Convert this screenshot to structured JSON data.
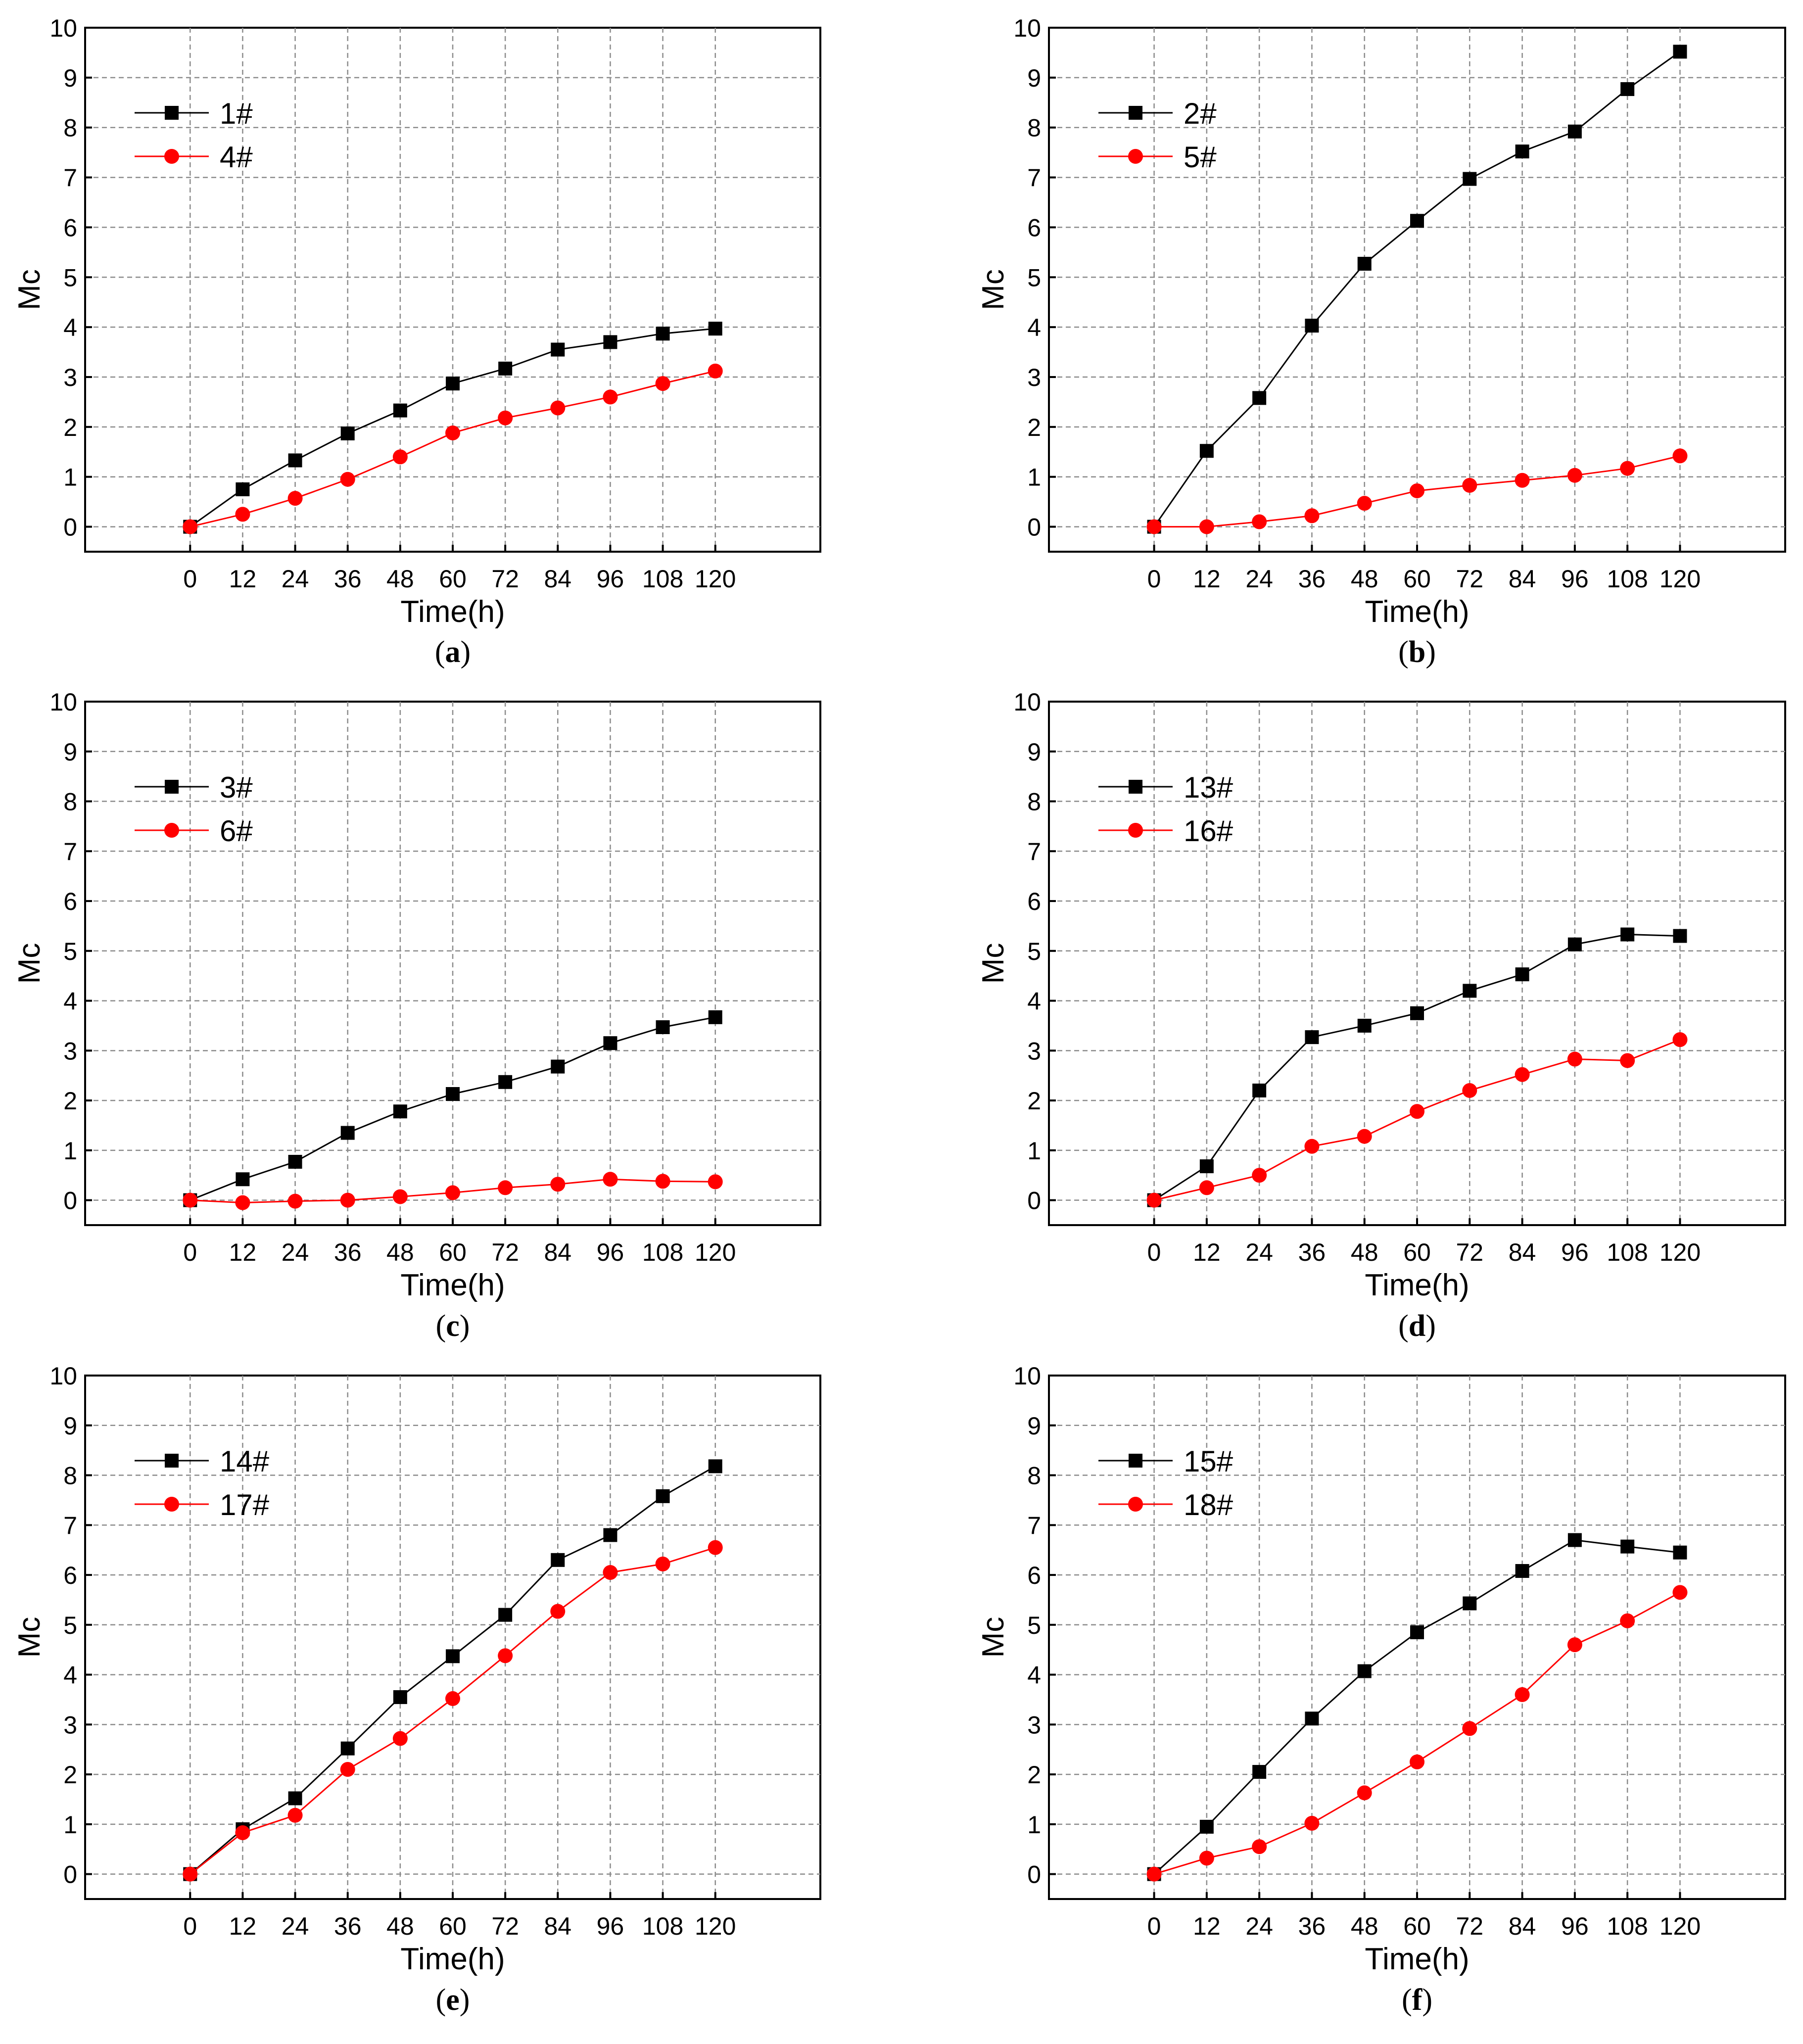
{
  "chart_data": [
    {
      "type": "line",
      "panel_label": "a",
      "xlabel": "Time(h)",
      "ylabel": "Mc",
      "x": [
        0,
        12,
        24,
        36,
        48,
        60,
        72,
        84,
        96,
        108,
        120
      ],
      "xticks": [
        "0",
        "12",
        "24",
        "36",
        "48",
        "60",
        "72",
        "84",
        "96",
        "108",
        "120"
      ],
      "ylim": [
        -0.5,
        10
      ],
      "yticks": [
        "0",
        "1",
        "2",
        "3",
        "4",
        "5",
        "6",
        "7",
        "8",
        "9",
        "10"
      ],
      "grid": true,
      "legend_position": "top-left",
      "series": [
        {
          "name": "1#",
          "color": "#000000",
          "marker": "square",
          "values": [
            0,
            0.75,
            1.33,
            1.87,
            2.33,
            2.87,
            3.17,
            3.55,
            3.7,
            3.87,
            3.97
          ]
        },
        {
          "name": "4#",
          "color": "#ff0000",
          "marker": "circle",
          "values": [
            0,
            0.25,
            0.57,
            0.95,
            1.4,
            1.88,
            2.18,
            2.38,
            2.6,
            2.87,
            3.12
          ]
        }
      ]
    },
    {
      "type": "line",
      "panel_label": "b",
      "xlabel": "Time(h)",
      "ylabel": "Mc",
      "x": [
        0,
        12,
        24,
        36,
        48,
        60,
        72,
        84,
        96,
        108,
        120
      ],
      "xticks": [
        "0",
        "12",
        "24",
        "36",
        "48",
        "60",
        "72",
        "84",
        "96",
        "108",
        "120"
      ],
      "ylim": [
        -0.5,
        10
      ],
      "yticks": [
        "0",
        "1",
        "2",
        "3",
        "4",
        "5",
        "6",
        "7",
        "8",
        "9",
        "10"
      ],
      "grid": true,
      "legend_position": "top-left",
      "series": [
        {
          "name": "2#",
          "color": "#000000",
          "marker": "square",
          "values": [
            0,
            1.52,
            2.58,
            4.03,
            5.27,
            6.13,
            6.97,
            7.52,
            7.92,
            8.77,
            9.52
          ]
        },
        {
          "name": "5#",
          "color": "#ff0000",
          "marker": "circle",
          "values": [
            0,
            0,
            0.1,
            0.22,
            0.47,
            0.72,
            0.83,
            0.93,
            1.03,
            1.17,
            1.42
          ]
        }
      ]
    },
    {
      "type": "line",
      "panel_label": "c",
      "xlabel": "Time(h)",
      "ylabel": "Mc",
      "x": [
        0,
        12,
        24,
        36,
        48,
        60,
        72,
        84,
        96,
        108,
        120
      ],
      "xticks": [
        "0",
        "12",
        "24",
        "36",
        "48",
        "60",
        "72",
        "84",
        "96",
        "108",
        "120"
      ],
      "ylim": [
        -0.5,
        10
      ],
      "yticks": [
        "0",
        "1",
        "2",
        "3",
        "4",
        "5",
        "6",
        "7",
        "8",
        "9",
        "10"
      ],
      "grid": true,
      "legend_position": "top-left",
      "series": [
        {
          "name": "3#",
          "color": "#000000",
          "marker": "square",
          "values": [
            0,
            0.42,
            0.77,
            1.35,
            1.78,
            2.13,
            2.37,
            2.68,
            3.15,
            3.47,
            3.67
          ]
        },
        {
          "name": "6#",
          "color": "#ff0000",
          "marker": "circle",
          "values": [
            0,
            -0.05,
            -0.02,
            0,
            0.07,
            0.15,
            0.25,
            0.32,
            0.42,
            0.38,
            0.37
          ]
        }
      ]
    },
    {
      "type": "line",
      "panel_label": "d",
      "xlabel": "Time(h)",
      "ylabel": "Mc",
      "x": [
        0,
        12,
        24,
        36,
        48,
        60,
        72,
        84,
        96,
        108,
        120
      ],
      "xticks": [
        "0",
        "12",
        "24",
        "36",
        "48",
        "60",
        "72",
        "84",
        "96",
        "108",
        "120"
      ],
      "ylim": [
        -0.5,
        10
      ],
      "yticks": [
        "0",
        "1",
        "2",
        "3",
        "4",
        "5",
        "6",
        "7",
        "8",
        "9",
        "10"
      ],
      "grid": true,
      "legend_position": "top-left",
      "series": [
        {
          "name": "13#",
          "color": "#000000",
          "marker": "square",
          "values": [
            0,
            0.68,
            2.2,
            3.27,
            3.5,
            3.75,
            4.2,
            4.53,
            5.13,
            5.33,
            5.3
          ]
        },
        {
          "name": "16#",
          "color": "#ff0000",
          "marker": "circle",
          "values": [
            0,
            0.25,
            0.5,
            1.08,
            1.28,
            1.78,
            2.2,
            2.52,
            2.83,
            2.8,
            3.22
          ]
        }
      ]
    },
    {
      "type": "line",
      "panel_label": "e",
      "xlabel": "Time(h)",
      "ylabel": "Mc",
      "x": [
        0,
        12,
        24,
        36,
        48,
        60,
        72,
        84,
        96,
        108,
        120
      ],
      "xticks": [
        "0",
        "12",
        "24",
        "36",
        "48",
        "60",
        "72",
        "84",
        "96",
        "108",
        "120"
      ],
      "ylim": [
        -0.5,
        10
      ],
      "yticks": [
        "0",
        "1",
        "2",
        "3",
        "4",
        "5",
        "6",
        "7",
        "8",
        "9",
        "10"
      ],
      "grid": true,
      "legend_position": "top-left",
      "series": [
        {
          "name": "14#",
          "color": "#000000",
          "marker": "square",
          "values": [
            0,
            0.9,
            1.52,
            2.52,
            3.55,
            4.37,
            5.2,
            6.3,
            6.8,
            7.58,
            8.18
          ]
        },
        {
          "name": "17#",
          "color": "#ff0000",
          "marker": "circle",
          "values": [
            0,
            0.83,
            1.18,
            2.1,
            2.72,
            3.52,
            4.38,
            5.27,
            6.05,
            6.22,
            6.55
          ]
        }
      ]
    },
    {
      "type": "line",
      "panel_label": "f",
      "xlabel": "Time(h)",
      "ylabel": "Mc",
      "x": [
        0,
        12,
        24,
        36,
        48,
        60,
        72,
        84,
        96,
        108,
        120
      ],
      "xticks": [
        "0",
        "12",
        "24",
        "36",
        "48",
        "60",
        "72",
        "84",
        "96",
        "108",
        "120"
      ],
      "ylim": [
        -0.5,
        10
      ],
      "yticks": [
        "0",
        "1",
        "2",
        "3",
        "4",
        "5",
        "6",
        "7",
        "8",
        "9",
        "10"
      ],
      "grid": true,
      "legend_position": "top-left",
      "series": [
        {
          "name": "15#",
          "color": "#000000",
          "marker": "square",
          "values": [
            0,
            0.95,
            2.05,
            3.12,
            4.07,
            4.85,
            5.43,
            6.08,
            6.7,
            6.57,
            6.45
          ]
        },
        {
          "name": "18#",
          "color": "#ff0000",
          "marker": "circle",
          "values": [
            0,
            0.32,
            0.55,
            1.02,
            1.63,
            2.25,
            2.92,
            3.6,
            4.6,
            5.08,
            5.65
          ]
        }
      ]
    }
  ]
}
